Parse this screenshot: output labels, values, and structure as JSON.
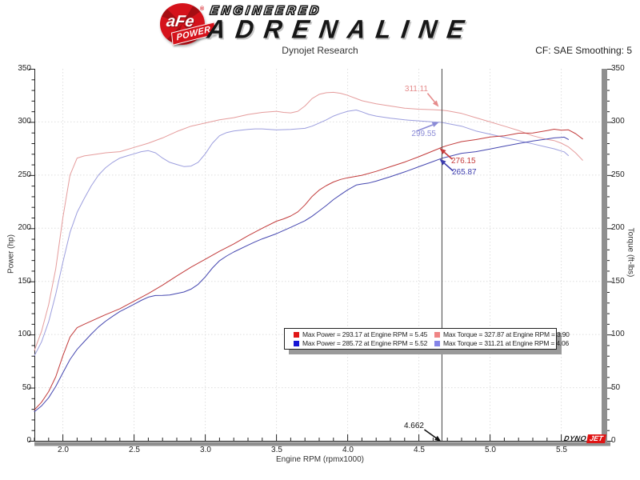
{
  "header": {
    "badge_text": "aFe",
    "badge_reg": "®",
    "badge_ribbon": "POWER",
    "logo_line1": "ENGINEERED",
    "logo_line2": "ADRENALINE",
    "subtitle": "Dynojet Research",
    "cf_label": "CF: SAE Smoothing: 5"
  },
  "chart_data": {
    "type": "line",
    "title": "Dynojet Research",
    "xlabel": "Engine RPM (rpmx1000)",
    "ylabel_left": "Power (hp)",
    "ylabel_right": "Torque (ft-lbs)",
    "xlim": [
      1.8,
      5.8
    ],
    "ylim": [
      0,
      350
    ],
    "grid": "dotted",
    "x_tick_labels": [
      "2.0",
      "2.5",
      "3.0",
      "3.5",
      "4.0",
      "4.5",
      "5.0",
      "5.5"
    ],
    "y_tick_labels": [
      "350",
      "300",
      "250",
      "200",
      "150",
      "100",
      "50",
      "0"
    ],
    "series": [
      {
        "name": "torque-red",
        "unit": "ft-lbs",
        "color": "#e59c9c",
        "x": [
          1.8,
          1.85,
          1.9,
          1.95,
          2.0,
          2.05,
          2.1,
          2.15,
          2.2,
          2.3,
          2.4,
          2.5,
          2.6,
          2.7,
          2.8,
          2.9,
          3.0,
          3.1,
          3.2,
          3.3,
          3.4,
          3.5,
          3.55,
          3.6,
          3.65,
          3.7,
          3.75,
          3.8,
          3.85,
          3.9,
          3.95,
          4.0,
          4.1,
          4.2,
          4.3,
          4.4,
          4.5,
          4.6,
          4.662,
          4.7,
          4.8,
          4.9,
          5.0,
          5.1,
          5.2,
          5.3,
          5.4,
          5.45,
          5.5,
          5.55,
          5.6,
          5.65
        ],
        "values": [
          85,
          103,
          128,
          162,
          210,
          250,
          266,
          268,
          269,
          271,
          272,
          276,
          280,
          285,
          291,
          296,
          299,
          302,
          304,
          307,
          309,
          310,
          309,
          308.5,
          310,
          315,
          322,
          326,
          327.5,
          327.87,
          327,
          325,
          320,
          317,
          315,
          313,
          312,
          311.5,
          311.11,
          310.5,
          308,
          304,
          300,
          296,
          292,
          287,
          283.5,
          282.5,
          280,
          276.5,
          271,
          264
        ]
      },
      {
        "name": "torque-blue",
        "unit": "ft-lbs",
        "color": "#9c9ede",
        "x": [
          1.8,
          1.85,
          1.9,
          1.95,
          2.0,
          2.05,
          2.1,
          2.15,
          2.2,
          2.25,
          2.3,
          2.35,
          2.4,
          2.45,
          2.5,
          2.55,
          2.6,
          2.65,
          2.7,
          2.75,
          2.8,
          2.85,
          2.9,
          2.95,
          3.0,
          3.05,
          3.1,
          3.15,
          3.2,
          3.3,
          3.35,
          3.4,
          3.5,
          3.6,
          3.7,
          3.75,
          3.8,
          3.85,
          3.9,
          3.95,
          4.0,
          4.06,
          4.1,
          4.15,
          4.2,
          4.3,
          4.4,
          4.5,
          4.6,
          4.662,
          4.7,
          4.8,
          4.9,
          5.0,
          5.1,
          5.2,
          5.3,
          5.4,
          5.45,
          5.5,
          5.52,
          5.55
        ],
        "values": [
          80,
          93,
          112,
          138,
          168,
          196,
          215,
          228,
          240,
          250,
          257,
          262,
          266,
          268,
          270,
          272,
          273,
          271,
          266,
          262,
          260,
          258,
          258.5,
          262,
          270,
          280,
          287,
          290,
          291.5,
          293,
          293.5,
          293.5,
          292.5,
          293,
          294,
          296,
          299,
          302,
          305.5,
          308,
          310,
          311.21,
          309.5,
          307,
          305.5,
          303.5,
          302,
          301,
          300,
          299.55,
          298.5,
          296,
          291.5,
          288.5,
          285.5,
          282.5,
          279.4,
          276.2,
          274.7,
          272.6,
          271.85,
          268.3
        ]
      },
      {
        "name": "power-red",
        "unit": "hp",
        "color": "#c23b3b",
        "x": [
          1.8,
          1.85,
          1.9,
          1.95,
          2.0,
          2.05,
          2.1,
          2.15,
          2.2,
          2.3,
          2.4,
          2.5,
          2.6,
          2.7,
          2.8,
          2.9,
          3.0,
          3.1,
          3.2,
          3.3,
          3.4,
          3.5,
          3.55,
          3.6,
          3.65,
          3.7,
          3.75,
          3.8,
          3.85,
          3.9,
          3.95,
          4.0,
          4.1,
          4.2,
          4.3,
          4.4,
          4.5,
          4.6,
          4.662,
          4.7,
          4.8,
          4.9,
          5.0,
          5.1,
          5.2,
          5.3,
          5.4,
          5.45,
          5.5,
          5.55,
          5.6,
          5.65
        ],
        "values": [
          29.1,
          36.3,
          46.3,
          60.2,
          80,
          97.6,
          106.4,
          109.7,
          112.7,
          118.7,
          124.3,
          131.4,
          138.6,
          146.5,
          155.1,
          163.4,
          170.8,
          178.3,
          185.2,
          192.9,
          200,
          206.6,
          208.8,
          211.5,
          215.4,
          221.9,
          229.9,
          235.9,
          240.1,
          243.5,
          245.9,
          247.5,
          249.8,
          253.5,
          257.9,
          262.2,
          267.3,
          272.8,
          276.15,
          277.9,
          281.5,
          283.4,
          285.9,
          286.9,
          289.4,
          289.6,
          291.9,
          293.17,
          292.3,
          292.6,
          289,
          284
        ]
      },
      {
        "name": "power-blue",
        "unit": "hp",
        "color": "#4547b0",
        "x": [
          1.8,
          1.85,
          1.9,
          1.95,
          2.0,
          2.05,
          2.1,
          2.15,
          2.2,
          2.25,
          2.3,
          2.35,
          2.4,
          2.45,
          2.5,
          2.55,
          2.6,
          2.65,
          2.7,
          2.75,
          2.8,
          2.85,
          2.9,
          2.95,
          3.0,
          3.05,
          3.1,
          3.15,
          3.2,
          3.3,
          3.35,
          3.4,
          3.5,
          3.6,
          3.7,
          3.75,
          3.8,
          3.85,
          3.9,
          3.95,
          4.0,
          4.06,
          4.1,
          4.15,
          4.2,
          4.3,
          4.4,
          4.5,
          4.6,
          4.662,
          4.7,
          4.8,
          4.9,
          5.0,
          5.1,
          5.2,
          5.3,
          5.4,
          5.45,
          5.5,
          5.52,
          5.55
        ],
        "values": [
          27.4,
          32.8,
          40.5,
          51.2,
          64,
          76.5,
          86,
          93.3,
          100.5,
          107.1,
          112.5,
          117.2,
          121.6,
          125,
          128.5,
          132.1,
          135.2,
          136.7,
          136.8,
          137.2,
          138.6,
          140,
          142.7,
          147.2,
          154.2,
          162.6,
          169.4,
          173.9,
          177.6,
          184.1,
          187.2,
          190,
          194.9,
          200.8,
          207.1,
          211.3,
          216.3,
          221.4,
          226.9,
          231.6,
          236.1,
          240.6,
          241.6,
          242.6,
          244.3,
          248.5,
          253,
          257.9,
          262.8,
          265.87,
          267.1,
          270.5,
          272,
          274.6,
          277.2,
          279.7,
          282,
          284,
          285,
          285.4,
          285.72,
          283.5
        ]
      }
    ]
  },
  "legend": {
    "entries": [
      {
        "color": "#e01616",
        "label": "Max Power = 293.17 at Engine RPM = 5.45"
      },
      {
        "color": "#ef8585",
        "label": "Max Torque = 327.87 at Engine RPM = 3.90"
      },
      {
        "color": "#1616d6",
        "label": "Max Power = 285.72 at Engine RPM = 5.52"
      },
      {
        "color": "#8585e8",
        "label": "Max Torque = 311.21 at Engine RPM = 4.06"
      }
    ]
  },
  "cursor": {
    "rpm": 4.662,
    "label": "4.662"
  },
  "annotations": [
    {
      "label": "311.11",
      "color": "#e58b8b",
      "rpm": 4.662,
      "value": 311.11,
      "tip_dx": -4,
      "tip_dy": -4,
      "tail_dx": -14,
      "tail_dy": -17
    },
    {
      "label": "299.55",
      "color": "#8b8bd6",
      "rpm": 4.662,
      "value": 299.55,
      "tip_dx": -4,
      "tip_dy": 0,
      "tail_dx": -28,
      "tail_dy": 11
    },
    {
      "label": "276.15",
      "color": "#c63c3c",
      "rpm": 4.662,
      "value": 276.15,
      "tip_dx": -3,
      "tip_dy": 1,
      "tail_dx": 16,
      "tail_dy": 14
    },
    {
      "label": "265.87",
      "color": "#3c3cae",
      "rpm": 4.662,
      "value": 265.87,
      "tip_dx": -3,
      "tip_dy": 1,
      "tail_dx": 17,
      "tail_dy": 15
    },
    {
      "label": "4.662",
      "color": "#111111",
      "rpm": 4.662,
      "value": 0,
      "tip_dx": -1,
      "tip_dy": 1,
      "tail_dx": -21,
      "tail_dy": -15
    }
  ],
  "footer_logo": {
    "part1": "DYNO",
    "part2": "JET"
  }
}
